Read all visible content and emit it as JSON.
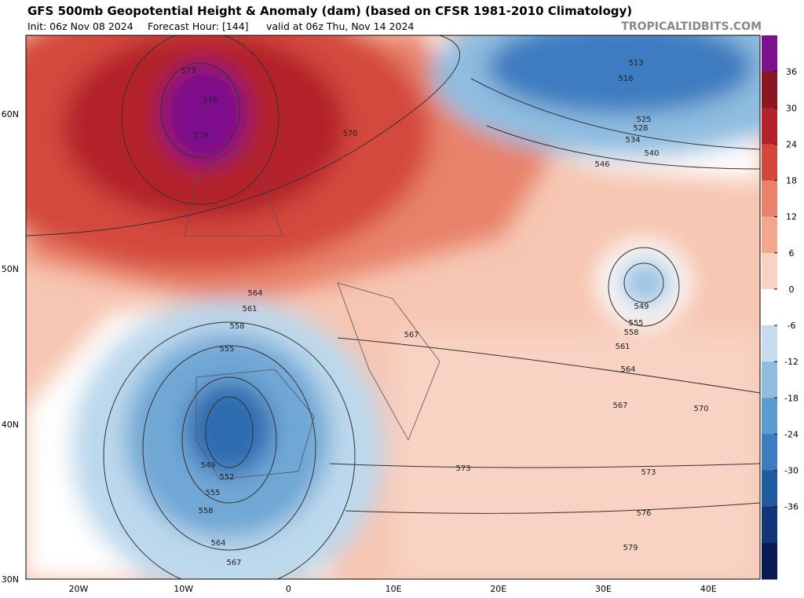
{
  "header": {
    "title": "GFS 500mb Geopotential Height & Anomaly (dam) (based on CFSR 1981-2010 Climatology)",
    "init": "Init: 06z Nov 08 2024",
    "forecast_hour": "Forecast Hour: [144]",
    "valid": "valid at 06z Thu, Nov 14 2024",
    "source": "TROPICALTIDBITS.COM"
  },
  "axes": {
    "lat_labels": [
      "60N",
      "50N",
      "40N",
      "30N"
    ],
    "lon_labels": [
      "20W",
      "10W",
      "0",
      "10E",
      "20E",
      "30E",
      "40E"
    ]
  },
  "colorbar": {
    "ticks": [
      36,
      30,
      24,
      18,
      12,
      6,
      0,
      -6,
      -12,
      -18,
      -24,
      -30,
      -36
    ]
  },
  "contour_labels": [
    573,
    576,
    579,
    570,
    513,
    516,
    525,
    528,
    534,
    540,
    546,
    564,
    561,
    558,
    555,
    549,
    555,
    558,
    561,
    564,
    567,
    567,
    570,
    573,
    573,
    576,
    579,
    549,
    552,
    555,
    558,
    564,
    567
  ]
}
